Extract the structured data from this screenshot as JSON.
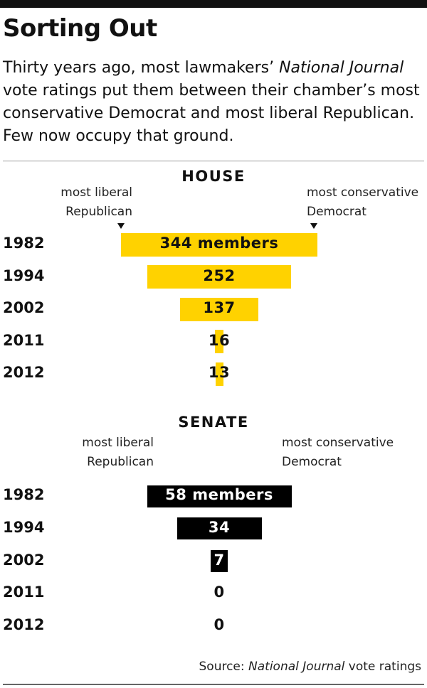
{
  "title": "Sorting Out",
  "subtitle": {
    "before": "Thirty years ago, most lawmakers’ ",
    "em": "National Journal",
    "after": " vote ratings put them between their chamber’s most conservative Democrat and most liberal Republican. Few now occupy that ground."
  },
  "source": {
    "prefix": "Source: ",
    "em": "National Journal",
    "suffix": " vote ratings"
  },
  "colors": {
    "house": "#ffd200",
    "senate": "#000000"
  },
  "chart_data": [
    {
      "type": "bar",
      "title": "HOUSE",
      "left_label": [
        "most liberal",
        "Republican"
      ],
      "right_label": [
        "most conservative",
        "Democrat"
      ],
      "categories": [
        "1982",
        "1994",
        "2002",
        "2011",
        "2012"
      ],
      "values": [
        344,
        252,
        137,
        16,
        13
      ],
      "value_labels": [
        "344 members",
        "252",
        "137",
        "16",
        "13"
      ],
      "xlim": [
        0,
        344
      ]
    },
    {
      "type": "bar",
      "title": "SENATE",
      "left_label": [
        "most liberal",
        "Republican"
      ],
      "right_label": [
        "most conservative",
        "Democrat"
      ],
      "categories": [
        "1982",
        "1994",
        "2002",
        "2011",
        "2012"
      ],
      "values": [
        58,
        34,
        7,
        0,
        0
      ],
      "value_labels": [
        "58 members",
        "34",
        "7",
        "0",
        "0"
      ],
      "xlim": [
        0,
        58
      ]
    }
  ]
}
